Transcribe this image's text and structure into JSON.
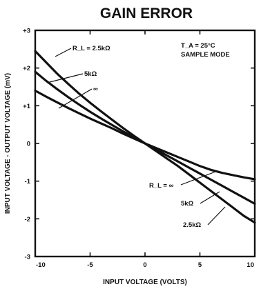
{
  "chart_data": {
    "type": "line",
    "title": "GAIN ERROR",
    "xlabel": "INPUT VOLTAGE (VOLTS)",
    "ylabel": "INPUT VOLTAGE - OUTPUT VOLTAGE (mV)",
    "xlim": [
      -10,
      10
    ],
    "ylim": [
      -3,
      3
    ],
    "x_ticks": [
      -10,
      -5,
      0,
      5,
      10
    ],
    "y_ticks": [
      -3,
      -2,
      -1,
      0,
      1,
      2,
      3
    ],
    "x_tick_labels": [
      "-10",
      "-5",
      "0",
      "5",
      "10"
    ],
    "y_tick_labels": [
      "-3",
      "-2",
      "-1",
      "0",
      "+1",
      "+2",
      "+3"
    ],
    "grid": false,
    "legend": "none",
    "annotations": {
      "conditions": "T_A = 25°C",
      "mode": "SAMPLE MODE"
    },
    "series": [
      {
        "name": "R_L = 2.5kΩ",
        "labels": [
          "R_L = 2.5kΩ",
          "2.5kΩ"
        ],
        "x": [
          -10,
          -9,
          -8,
          -7,
          -6,
          -5,
          -4,
          -3,
          -2,
          -1,
          0,
          1,
          2,
          3,
          4,
          5,
          6,
          7,
          8,
          9,
          10
        ],
        "y": [
          2.45,
          2.15,
          1.85,
          1.58,
          1.32,
          1.08,
          0.85,
          0.63,
          0.41,
          0.2,
          0,
          -0.2,
          -0.4,
          -0.6,
          -0.82,
          -1.04,
          -1.26,
          -1.48,
          -1.7,
          -1.92,
          -2.1
        ]
      },
      {
        "name": "5kΩ",
        "labels": [
          "5kΩ",
          "5kΩ"
        ],
        "x": [
          -10,
          -9,
          -8,
          -7,
          -6,
          -5,
          -4,
          -3,
          -2,
          -1,
          0,
          1,
          2,
          3,
          4,
          5,
          6,
          7,
          8,
          9,
          10
        ],
        "y": [
          1.9,
          1.66,
          1.44,
          1.23,
          1.03,
          0.84,
          0.66,
          0.49,
          0.32,
          0.16,
          0,
          -0.16,
          -0.32,
          -0.48,
          -0.64,
          -0.8,
          -0.96,
          -1.12,
          -1.28,
          -1.44,
          -1.6
        ]
      },
      {
        "name": "∞",
        "labels": [
          "∞",
          "R_L = ∞"
        ],
        "x": [
          -10,
          -9,
          -8,
          -7,
          -6,
          -5,
          -4,
          -3,
          -2,
          -1,
          0,
          1,
          2,
          3,
          4,
          5,
          6,
          7,
          8,
          9,
          10
        ],
        "y": [
          1.4,
          1.24,
          1.09,
          0.94,
          0.8,
          0.66,
          0.53,
          0.4,
          0.26,
          0.13,
          0,
          -0.12,
          -0.24,
          -0.36,
          -0.48,
          -0.6,
          -0.7,
          -0.78,
          -0.84,
          -0.9,
          -0.95
        ]
      }
    ]
  }
}
